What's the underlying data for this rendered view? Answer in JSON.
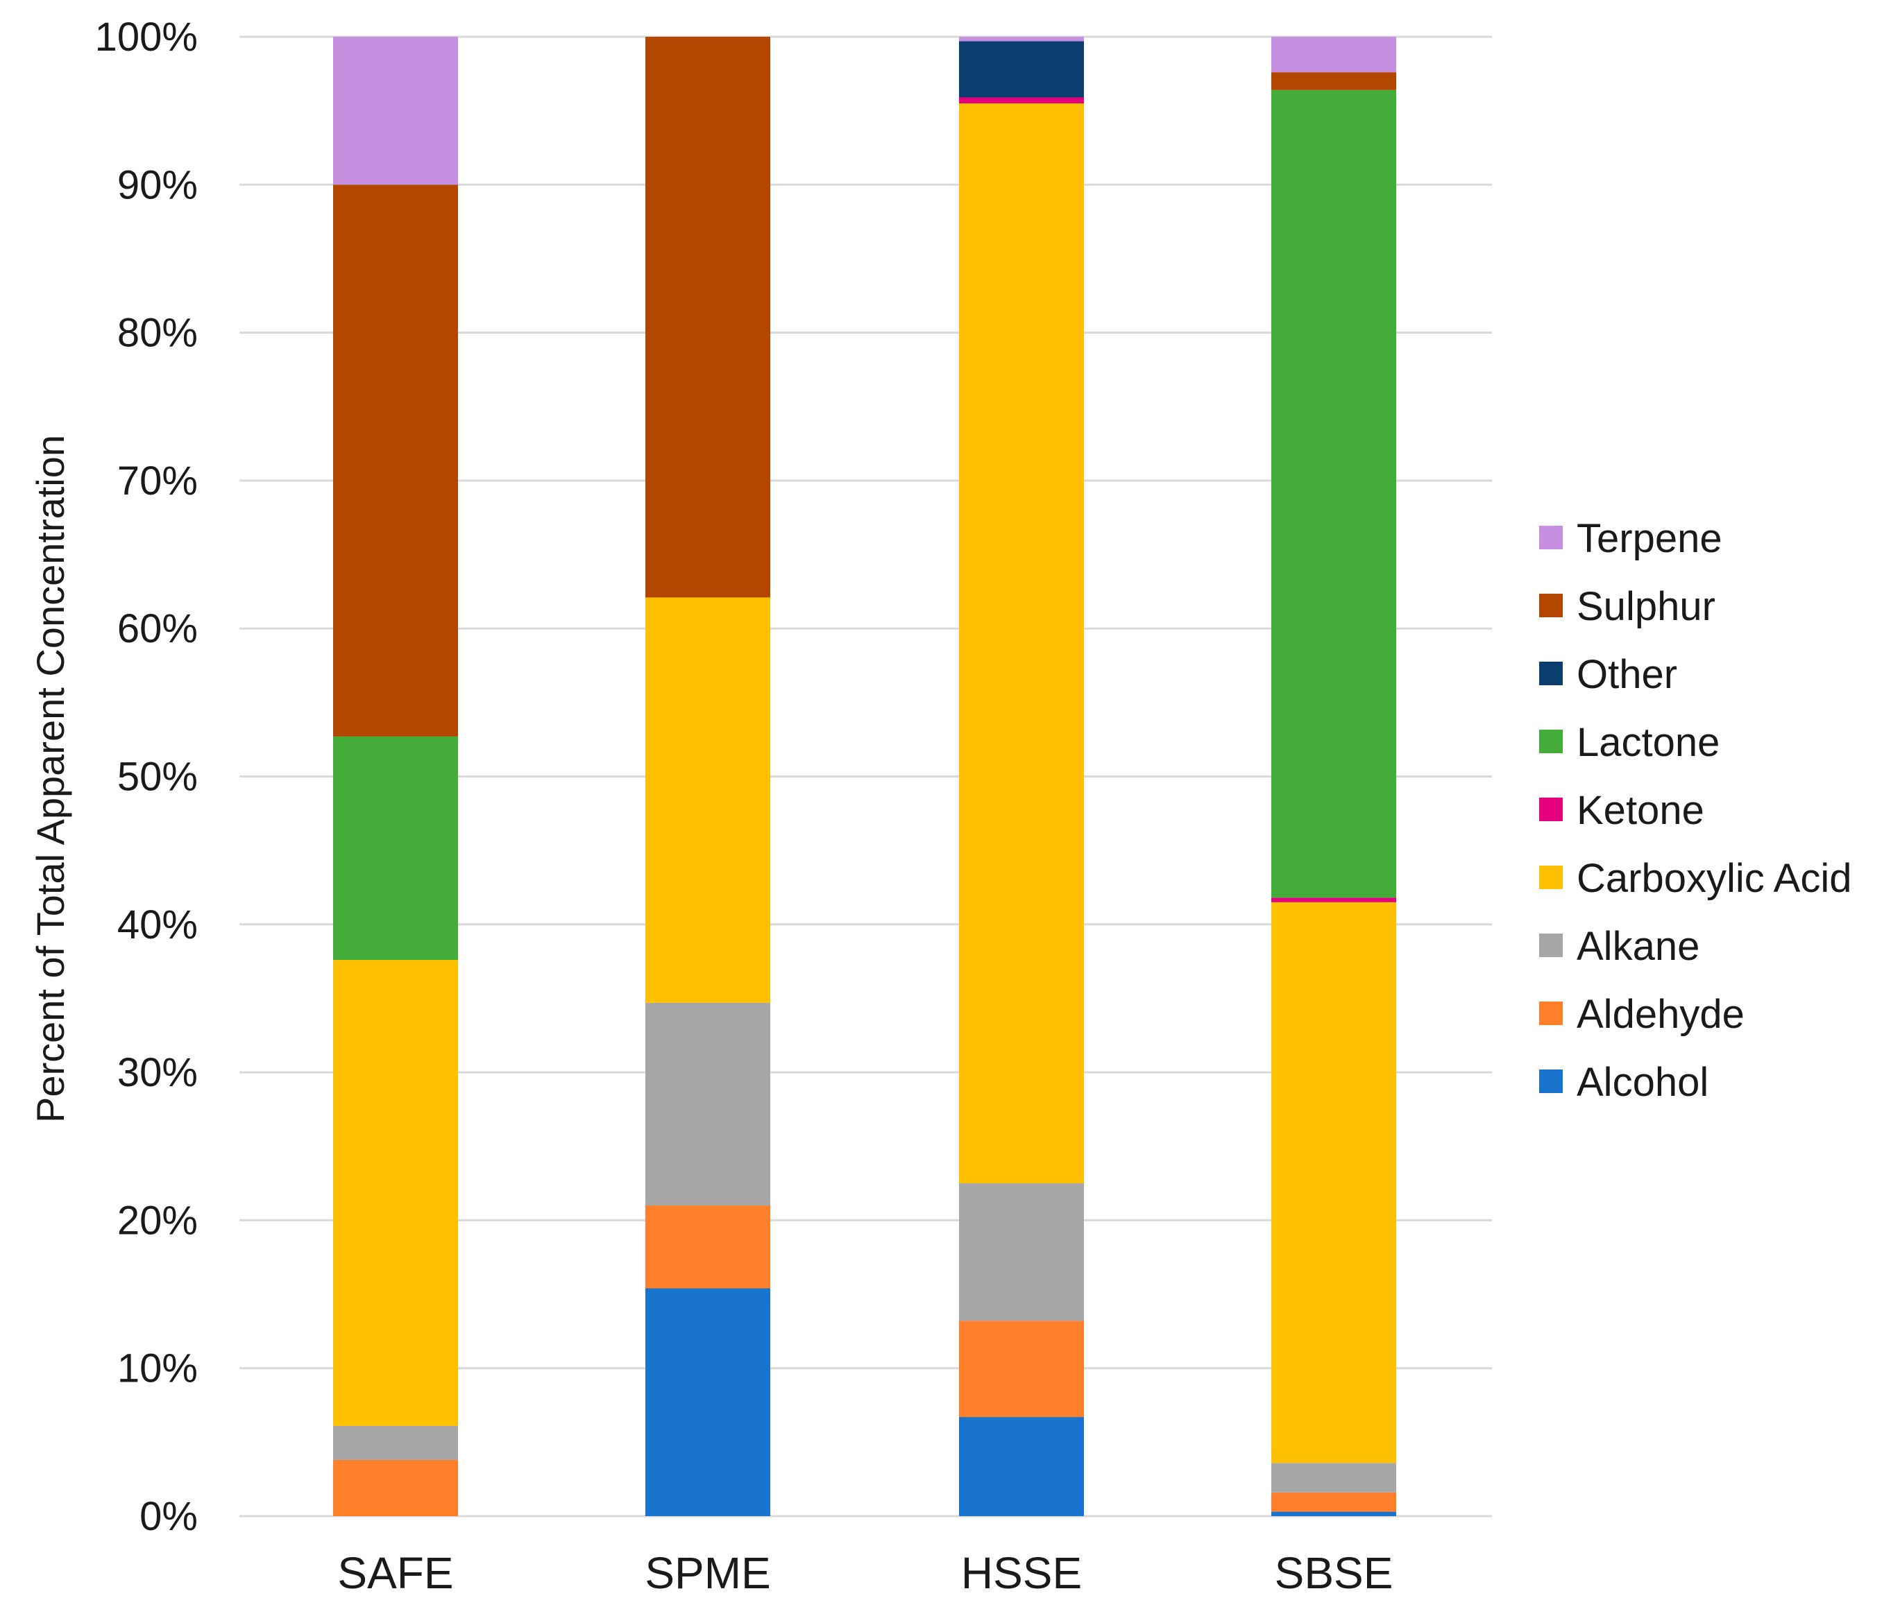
{
  "chart_data": {
    "type": "bar",
    "stacked": true,
    "percent": true,
    "title": "",
    "xlabel": "",
    "ylabel": "Percent of Total Apparent Concentration",
    "ylim": [
      0,
      100
    ],
    "yticks": [
      0,
      10,
      20,
      30,
      40,
      50,
      60,
      70,
      80,
      90,
      100
    ],
    "ytick_labels": [
      "0%",
      "10%",
      "20%",
      "30%",
      "40%",
      "50%",
      "60%",
      "70%",
      "80%",
      "90%",
      "100%"
    ],
    "grid": true,
    "legend_position": "right",
    "categories": [
      "SAFE",
      "SPME",
      "HSSE",
      "SBSE"
    ],
    "series": [
      {
        "name": "Alcohol",
        "color": "#1874CD",
        "values": [
          0,
          15.4,
          6.7,
          0.3
        ]
      },
      {
        "name": "Aldehyde",
        "color": "#FF7F2A",
        "values": [
          3.8,
          5.6,
          6.5,
          1.3
        ]
      },
      {
        "name": "Alkane",
        "color": "#A6A6A6",
        "values": [
          2.3,
          13.7,
          9.3,
          2.0
        ]
      },
      {
        "name": "Carboxylic Acid",
        "color": "#FFC000",
        "values": [
          31.5,
          27.4,
          73.0,
          37.9
        ]
      },
      {
        "name": "Ketone",
        "color": "#E5007E",
        "values": [
          0,
          0,
          0.4,
          0.3
        ]
      },
      {
        "name": "Lactone",
        "color": "#44AD3A",
        "values": [
          15.1,
          0,
          0,
          54.6
        ]
      },
      {
        "name": "Other",
        "color": "#0B3E6F",
        "values": [
          0,
          0,
          3.8,
          0
        ]
      },
      {
        "name": "Sulphur",
        "color": "#B34700",
        "values": [
          37.3,
          37.9,
          0,
          1.2
        ]
      },
      {
        "name": "Terpene",
        "color": "#C68FE0",
        "values": [
          10.0,
          0,
          0.3,
          2.4
        ]
      }
    ]
  }
}
